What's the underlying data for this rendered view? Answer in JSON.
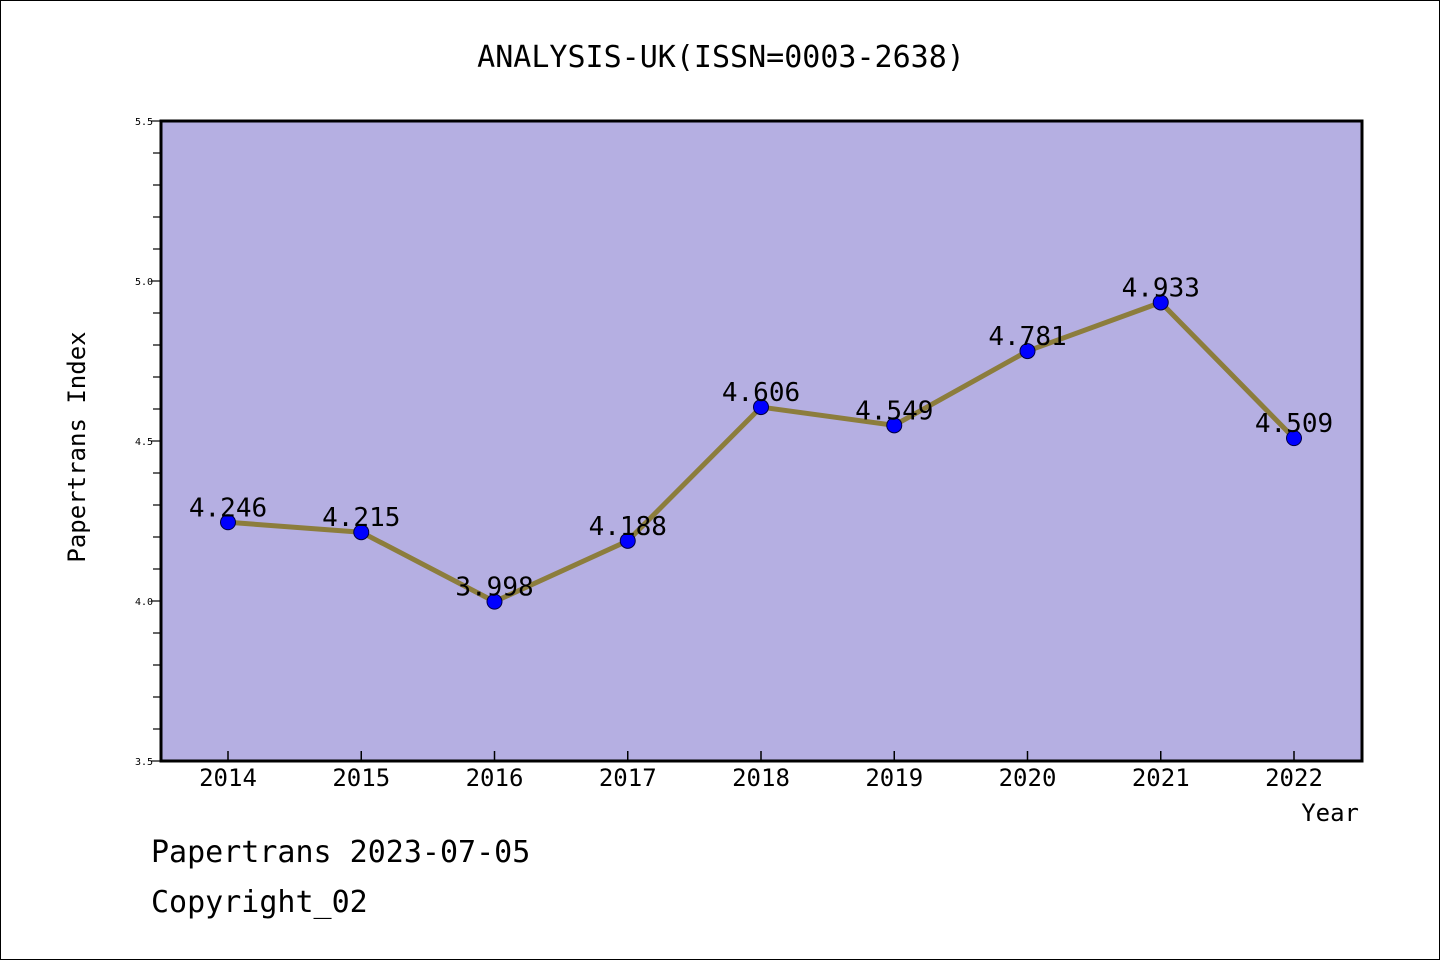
{
  "chart_data": {
    "type": "line",
    "title": "ANALYSIS-UK(ISSN=0003-2638)",
    "xlabel": "Year",
    "ylabel": "Papertrans Index",
    "categories": [
      "2014",
      "2015",
      "2016",
      "2017",
      "2018",
      "2019",
      "2020",
      "2021",
      "2022"
    ],
    "series": [
      {
        "values": [
          4.246,
          4.215,
          3.998,
          4.188,
          4.606,
          4.549,
          4.781,
          4.933,
          4.509
        ],
        "data_labels": [
          "4.246",
          "4.215",
          "3.998",
          "4.188",
          "4.606",
          "4.549",
          "4.781",
          "4.933",
          "4.509"
        ]
      }
    ],
    "ylim": [
      3.5,
      5.5
    ],
    "yticks": [
      "3.5",
      "4.0",
      "4.5",
      "5.0",
      "5.5"
    ],
    "grid": false,
    "legend": "none",
    "colors": {
      "plot_background": "#b5afe2",
      "line": "#8c7d3c",
      "marker": "#0000ff"
    }
  },
  "footer": {
    "line1": "Papertrans 2023-07-05",
    "line2": "Copyright_02"
  }
}
